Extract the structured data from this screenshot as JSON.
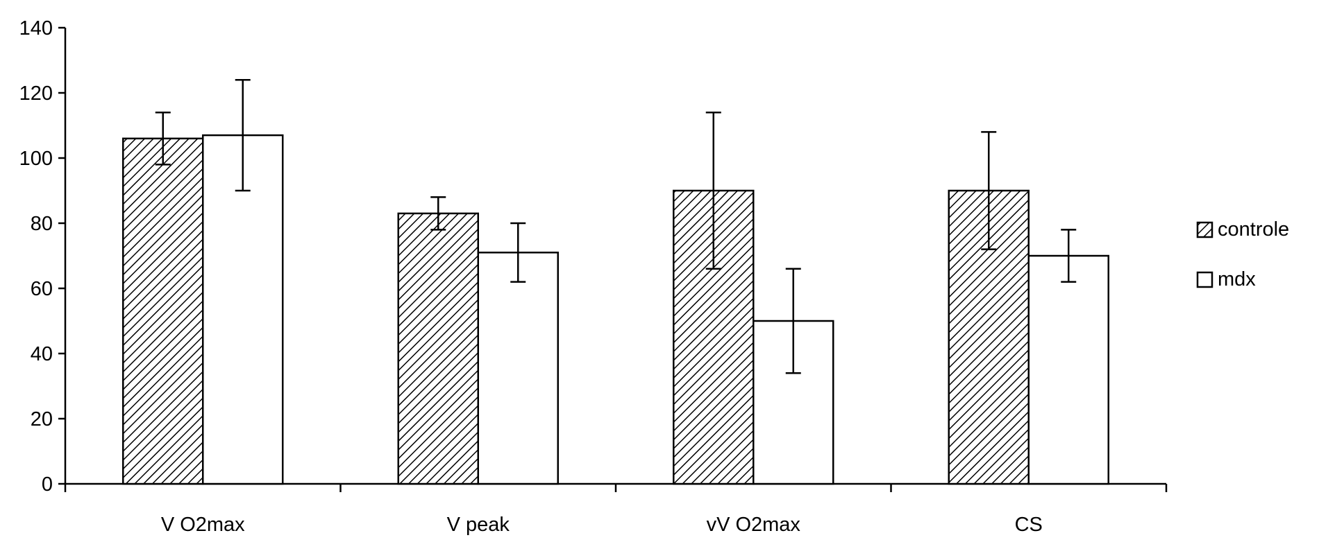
{
  "chart_data": {
    "type": "bar",
    "title": "",
    "xlabel": "",
    "ylabel": "",
    "categories": [
      "V O2max",
      "V peak",
      "vV O2max",
      "CS"
    ],
    "ylim": [
      0,
      140
    ],
    "y_ticks": [
      0,
      20,
      40,
      60,
      80,
      100,
      120,
      140
    ],
    "y_tick_labels": [
      "0",
      "20",
      "40",
      "60",
      "80",
      "100",
      "120",
      "140"
    ],
    "grid": false,
    "legend_position": "right",
    "series": [
      {
        "name": "controle",
        "pattern": "hatched",
        "values": [
          106,
          83,
          90,
          90
        ],
        "errors": [
          8,
          5,
          24,
          18
        ]
      },
      {
        "name": "mdx",
        "pattern": "open",
        "values": [
          107,
          71,
          50,
          70
        ],
        "errors": [
          17,
          9,
          16,
          8
        ]
      }
    ]
  },
  "colors": {
    "axis": "#000000",
    "bar_stroke": "#000000",
    "hatch": "#000000",
    "open_fill": "#ffffff",
    "background": "#ffffff"
  }
}
